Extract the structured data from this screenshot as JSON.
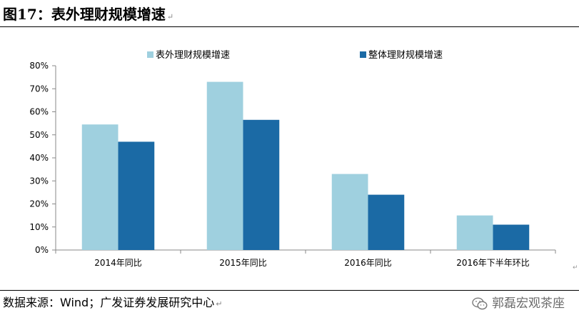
{
  "figure": {
    "title": "图17：表外理财规模增速",
    "source": "数据来源：Wind；广发证券发展研究中心",
    "watermark": "郭磊宏观茶座",
    "return_mark": "↵"
  },
  "colors": {
    "series1": "#9fd0df",
    "series2": "#1b6aa5",
    "axis": "#888888",
    "text": "#000000"
  },
  "chart_data": {
    "type": "bar",
    "title": "",
    "xlabel": "",
    "ylabel": "",
    "categories": [
      "2014年同比",
      "2015年同比",
      "2016年同比",
      "2016年下半年环比"
    ],
    "series": [
      {
        "name": "表外理财规模增速",
        "values": [
          54.5,
          73,
          33,
          15
        ]
      },
      {
        "name": "整体理财规模增速",
        "values": [
          47,
          56.5,
          24,
          11
        ]
      }
    ],
    "ylim": [
      0,
      80
    ],
    "yticks": [
      "0%",
      "10%",
      "20%",
      "30%",
      "40%",
      "50%",
      "60%",
      "70%",
      "80%"
    ],
    "grid": false,
    "legend_position": "top-center"
  }
}
